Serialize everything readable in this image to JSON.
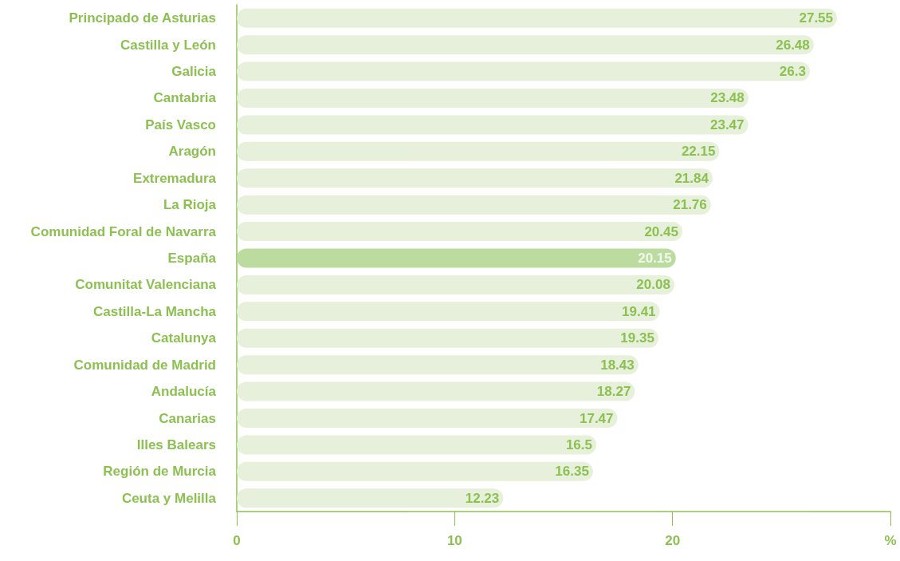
{
  "chart_data": {
    "type": "bar",
    "orientation": "horizontal",
    "categories": [
      "Principado de Asturias",
      "Castilla y León",
      "Galicia",
      "Cantabria",
      "País Vasco",
      "Aragón",
      "Extremadura",
      "La Rioja",
      "Comunidad Foral de Navarra",
      "España",
      "Comunitat Valenciana",
      "Castilla-La Mancha",
      "Catalunya",
      "Comunidad de Madrid",
      "Andalucía",
      "Canarias",
      "Illes Balears",
      "Región de Murcia",
      "Ceuta y Melilla"
    ],
    "values": [
      27.55,
      26.48,
      26.3,
      23.48,
      23.47,
      22.15,
      21.84,
      21.76,
      20.45,
      20.15,
      20.08,
      19.41,
      19.35,
      18.43,
      18.27,
      17.47,
      16.5,
      16.35,
      12.23
    ],
    "colors": [
      "#e6f0da",
      "#e6f0da",
      "#e6f0da",
      "#e6f0da",
      "#e6f0da",
      "#e6f0da",
      "#e6f0da",
      "#e6f0da",
      "#e6f0da",
      "#bcdc9f",
      "#e6f0da",
      "#e6f0da",
      "#e6f0da",
      "#e6f0da",
      "#e6f0da",
      "#e6f0da",
      "#e6f0da",
      "#e6f0da",
      "#e6f0da"
    ],
    "data_labels": true,
    "xlim": [
      0,
      30
    ],
    "xticks": [
      0,
      10,
      20,
      {
        "value": 30,
        "label": "%"
      }
    ],
    "grid": false
  }
}
